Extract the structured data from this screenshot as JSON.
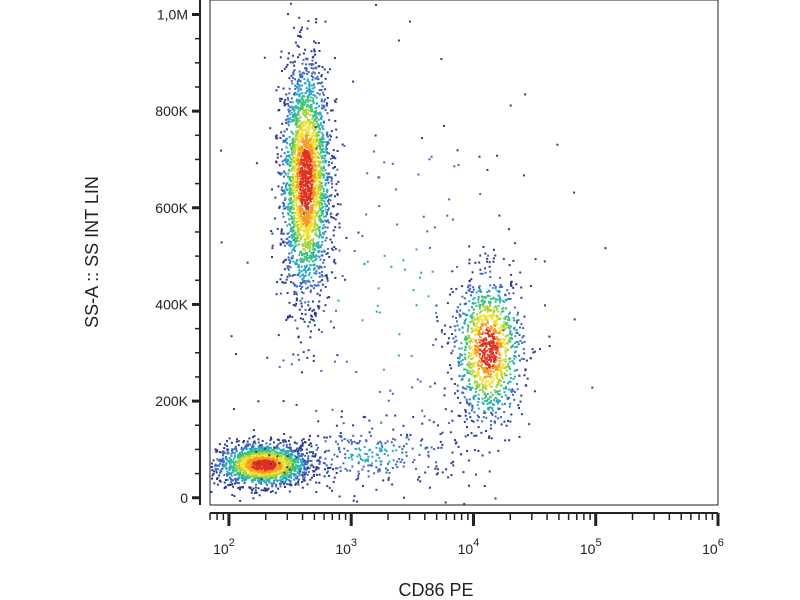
{
  "chart_data": {
    "type": "scatter",
    "style": "density-colored dot plot (flow cytometry)",
    "xlabel": "CD86 PE",
    "ylabel": "SS-A :: SS INT LIN",
    "x_scale": "log",
    "y_scale": "linear",
    "xlim": [
      70,
      1000000
    ],
    "ylim": [
      -15000,
      1030000
    ],
    "x_ticks": [
      {
        "value": 100,
        "base": "10",
        "exp": "2"
      },
      {
        "value": 1000,
        "base": "10",
        "exp": "3"
      },
      {
        "value": 10000,
        "base": "10",
        "exp": "4"
      },
      {
        "value": 100000,
        "base": "10",
        "exp": "5"
      },
      {
        "value": 1000000,
        "base": "10",
        "exp": "6"
      }
    ],
    "y_ticks": [
      {
        "value": 0,
        "label": "0"
      },
      {
        "value": 200000,
        "label": "200K"
      },
      {
        "value": 400000,
        "label": "400K"
      },
      {
        "value": 600000,
        "label": "600K"
      },
      {
        "value": 800000,
        "label": "800K"
      },
      {
        "value": 1000000,
        "label": "1,0M"
      }
    ],
    "grid": false,
    "density_colormap": [
      "#2b3a8f",
      "#3f66c0",
      "#27a7c6",
      "#39c27a",
      "#a8d43a",
      "#f3e12b",
      "#f59a23",
      "#e0301e"
    ],
    "populations": [
      {
        "name": "",
        "center_x": 190,
        "center_y": 70000,
        "spread_log_x": 0.19,
        "spread_y": 22000,
        "weight": 0.3
      },
      {
        "name": "",
        "center_x": 420,
        "center_y": 660000,
        "spread_log_x": 0.1,
        "spread_y": 120000,
        "weight": 0.42
      },
      {
        "name": "",
        "center_x": 13000,
        "center_y": 310000,
        "spread_log_x": 0.14,
        "spread_y": 75000,
        "weight": 0.2
      },
      {
        "name": "",
        "center_x": 1500,
        "center_y": 90000,
        "spread_log_x": 0.4,
        "spread_y": 35000,
        "weight": 0.05
      },
      {
        "name": "",
        "center_x": 2000,
        "center_y": 400000,
        "spread_log_x": 0.75,
        "spread_y": 260000,
        "weight": 0.03
      }
    ]
  }
}
